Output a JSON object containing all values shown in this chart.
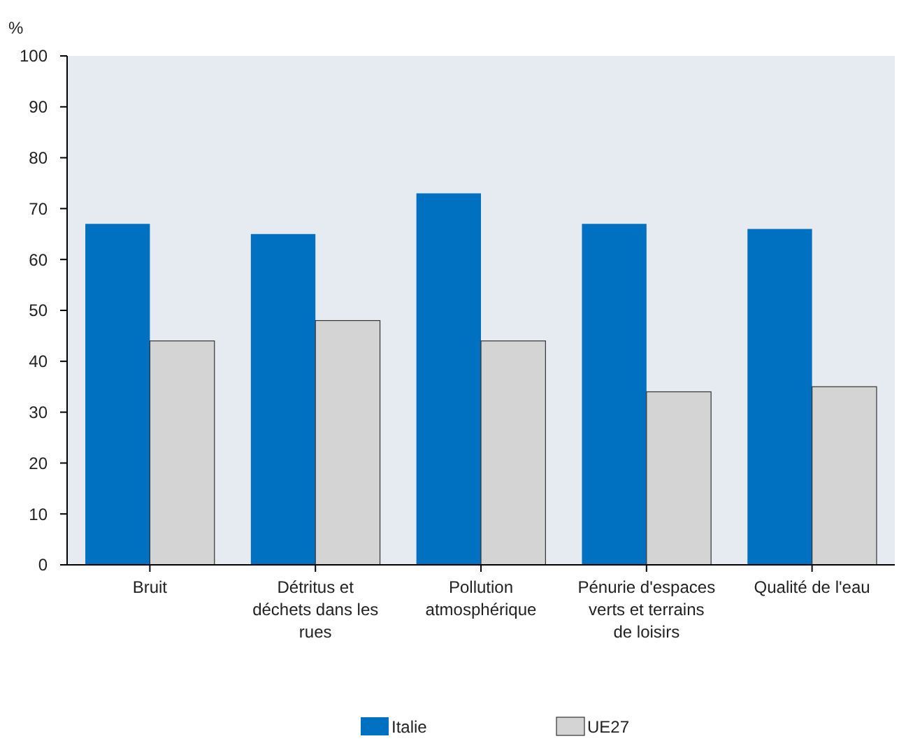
{
  "chart_data": {
    "type": "bar",
    "ylabel": "%",
    "categories": [
      "Bruit",
      "Détritus et déchets dans les rues",
      "Pollution atmosphérique",
      "Pénurie d'espaces verts et terrains de loisirs",
      "Qualité de l'eau"
    ],
    "series": [
      {
        "name": "Italie",
        "color": "#0070c0",
        "values": [
          67,
          65,
          73,
          67,
          66
        ]
      },
      {
        "name": "UE27",
        "color": "#d4d4d4",
        "values": [
          44,
          48,
          44,
          34,
          35
        ]
      }
    ],
    "ylim": [
      0,
      100
    ],
    "yticks": [
      0,
      10,
      20,
      30,
      40,
      50,
      60,
      70,
      80,
      90,
      100
    ],
    "legend": "bottom"
  }
}
